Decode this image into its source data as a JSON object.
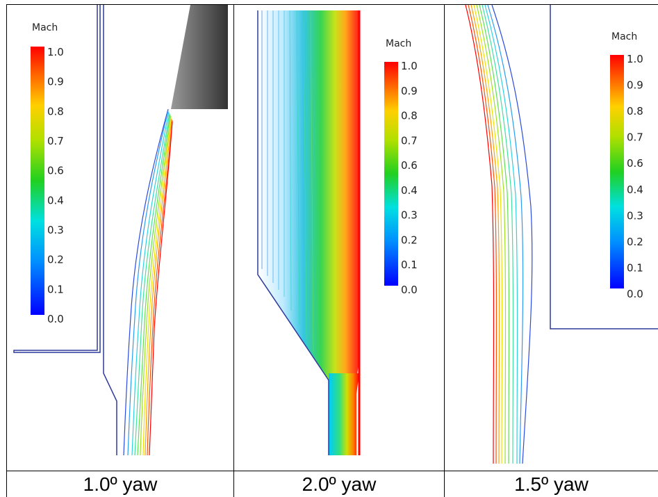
{
  "panels": [
    {
      "caption": "1.0º yaw",
      "colorbar": {
        "title": "Mach",
        "ticks": [
          "1.0",
          "0.9",
          "0.8",
          "0.7",
          "0.6",
          "0.4",
          "0.3",
          "0.2",
          "0.1",
          "0.0"
        ]
      }
    },
    {
      "caption": "2.0º yaw",
      "colorbar": {
        "title": "Mach",
        "ticks": [
          "1.0",
          "0.9",
          "0.8",
          "0.7",
          "0.6",
          "0.4",
          "0.3",
          "0.2",
          "0.1",
          "0.0"
        ]
      }
    },
    {
      "caption": "1.5º yaw",
      "colorbar": {
        "title": "Mach",
        "ticks": [
          "1.0",
          "0.9",
          "0.8",
          "0.7",
          "0.6",
          "0.4",
          "0.3",
          "0.2",
          "0.1",
          "0.0"
        ]
      }
    }
  ],
  "colors": {
    "wall": "#2b3a9c",
    "grid": "#000000",
    "body": "#444444"
  },
  "colormap": "jet (blue 0.0 to red 1.0)"
}
